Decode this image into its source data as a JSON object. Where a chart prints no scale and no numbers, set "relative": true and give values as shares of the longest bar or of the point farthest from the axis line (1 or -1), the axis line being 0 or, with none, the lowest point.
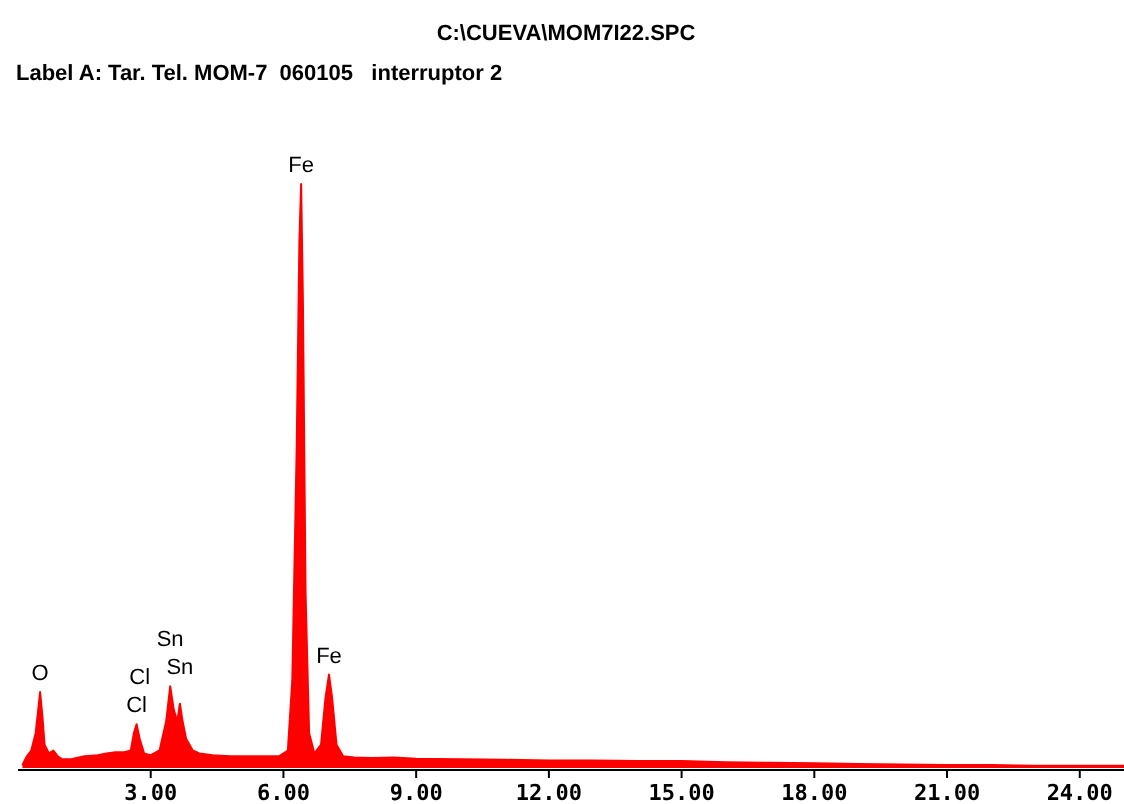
{
  "chart_data": {
    "type": "area",
    "title": "C:\\CUEVA\\MOM7I22.SPC",
    "subtitle": "Label A: Tar. Tel. MOM-7  060105   interruptor 2",
    "relative": true,
    "xlim": [
      0,
      25
    ],
    "xticks": [
      {
        "value": 3,
        "label": "3.00"
      },
      {
        "value": 6,
        "label": "6.00"
      },
      {
        "value": 9,
        "label": "9.00"
      },
      {
        "value": 12,
        "label": "12.00"
      },
      {
        "value": 15,
        "label": "15.00"
      },
      {
        "value": 18,
        "label": "18.00"
      },
      {
        "value": 21,
        "label": "21.00"
      },
      {
        "value": 24,
        "label": "24.00"
      }
    ],
    "series": [
      {
        "color": "#ff0000",
        "x": [
          0.1,
          0.2,
          0.3,
          0.4,
          0.5,
          0.55,
          0.6,
          0.7,
          0.8,
          0.9,
          1.0,
          1.2,
          1.5,
          1.8,
          2.0,
          2.2,
          2.4,
          2.55,
          2.62,
          2.68,
          2.75,
          2.85,
          3.0,
          3.2,
          3.35,
          3.44,
          3.52,
          3.6,
          3.66,
          3.72,
          3.8,
          3.95,
          4.1,
          4.4,
          4.8,
          5.2,
          5.6,
          5.9,
          6.1,
          6.2,
          6.3,
          6.36,
          6.4,
          6.44,
          6.5,
          6.58,
          6.7,
          6.85,
          6.95,
          7.03,
          7.1,
          7.2,
          7.35,
          7.6,
          8.0,
          8.5,
          9.0,
          10,
          11,
          12,
          13,
          14,
          15,
          16,
          17,
          18,
          19,
          20,
          21,
          22,
          23,
          24,
          25
        ],
        "values": [
          0.005,
          0.02,
          0.03,
          0.06,
          0.13,
          0.09,
          0.04,
          0.025,
          0.03,
          0.02,
          0.015,
          0.015,
          0.02,
          0.022,
          0.025,
          0.027,
          0.027,
          0.03,
          0.06,
          0.075,
          0.05,
          0.025,
          0.022,
          0.03,
          0.08,
          0.14,
          0.1,
          0.08,
          0.11,
          0.08,
          0.05,
          0.03,
          0.025,
          0.022,
          0.02,
          0.02,
          0.02,
          0.02,
          0.03,
          0.15,
          0.55,
          0.9,
          1.0,
          0.8,
          0.3,
          0.06,
          0.025,
          0.04,
          0.12,
          0.16,
          0.12,
          0.04,
          0.02,
          0.018,
          0.017,
          0.018,
          0.016,
          0.015,
          0.014,
          0.013,
          0.013,
          0.012,
          0.012,
          0.01,
          0.009,
          0.008,
          0.007,
          0.006,
          0.005,
          0.005,
          0.004,
          0.004,
          0.004
        ]
      }
    ],
    "annotations": [
      {
        "text": "O",
        "x": 0.5,
        "y": 0.13
      },
      {
        "text": "Cl",
        "x": 2.68,
        "y": 0.075
      },
      {
        "text": "Cl",
        "x": 2.75,
        "y": 0.05
      },
      {
        "text": "Sn",
        "x": 3.66,
        "y": 0.11
      },
      {
        "text": "Sn",
        "x": 3.44,
        "y": 0.14
      },
      {
        "text": "Fe",
        "x": 6.4,
        "y": 1.0
      },
      {
        "text": "Fe",
        "x": 7.03,
        "y": 0.16
      }
    ]
  }
}
